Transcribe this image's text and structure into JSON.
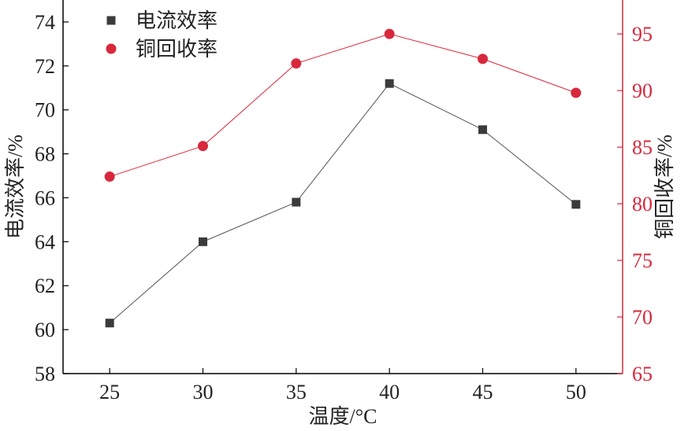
{
  "chart_data": {
    "type": "line",
    "xlabel": "温度/°C",
    "x": [
      25,
      30,
      35,
      40,
      45,
      50
    ],
    "xlim": [
      22.5,
      52.5
    ],
    "xticks": [
      25,
      30,
      35,
      40,
      45,
      50
    ],
    "y_left": {
      "label": "电流效率/%",
      "lim": [
        58,
        75
      ],
      "ticks": [
        58,
        60,
        62,
        64,
        66,
        68,
        70,
        72,
        74
      ],
      "color": "#3b3b3b"
    },
    "y_right": {
      "label": "铜回收率/%",
      "lim": [
        65,
        98
      ],
      "ticks": [
        65,
        70,
        75,
        80,
        85,
        90,
        95
      ],
      "color": "#d8283c"
    },
    "series": [
      {
        "name": "电流效率",
        "axis": "left",
        "marker": "square",
        "color": "#3b3b3b",
        "line_color": "#555555",
        "values": [
          60.3,
          64.0,
          65.8,
          71.2,
          69.1,
          65.7
        ]
      },
      {
        "name": "铜回收率",
        "axis": "right",
        "marker": "circle",
        "color": "#d8283c",
        "line_color": "#d8283c",
        "values": [
          82.4,
          85.1,
          92.4,
          95.0,
          92.8,
          89.8
        ]
      }
    ],
    "legend_position": "top-left",
    "grid": false
  }
}
